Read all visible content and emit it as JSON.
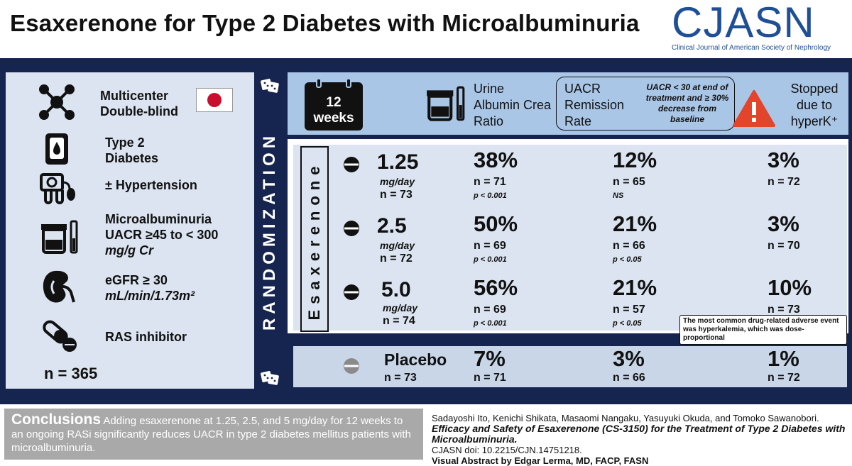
{
  "title": "Esaxerenone for Type 2 Diabetes with Microalbuminuria",
  "logo": {
    "name": "CJASN",
    "subtitle": "Clinical Journal of American Society of Nephrology"
  },
  "criteria": [
    {
      "icon": "network-icon",
      "text": "Multicenter Double-blind"
    },
    {
      "icon": "glucometer-icon",
      "text": "Type 2 Diabetes"
    },
    {
      "icon": "blood-pressure-icon",
      "text": "± Hypertension"
    },
    {
      "icon": "urine-cup-icon",
      "text": "Microalbuminuria",
      "line2": "UACR ≥45 to < 300",
      "line3": "mg/g Cr"
    },
    {
      "icon": "kidney-icon",
      "text": "eGFR ≥ 30",
      "line2": "mL/min/1.73m²"
    },
    {
      "icon": "pills-icon",
      "text": "RAS inhibitor"
    }
  ],
  "total_n": "n = 365",
  "randomization_label": "RANDOMIZATION",
  "drug_label": "Esaxerenone",
  "header": {
    "duration_num": "12",
    "duration_unit": "weeks",
    "uacr_label": "Urine Albumin Crea Ratio",
    "remission_label": "UACR Remission Rate",
    "remission_def": "UACR < 30 at end of treatment and ≥ 30% decrease from baseline",
    "stopped_label": "Stopped due to hyperK⁺"
  },
  "arms": [
    {
      "dose": "1.25",
      "unit": "mg/day",
      "n": "n = 73",
      "uacr_pct": "38%",
      "uacr_n": "n = 71",
      "uacr_p": "p < 0.001",
      "rem_pct": "12%",
      "rem_n": "n = 65",
      "rem_p": "NS",
      "stop_pct": "3%",
      "stop_n": "n = 72"
    },
    {
      "dose": "2.5",
      "unit": "mg/day",
      "n": "n = 72",
      "uacr_pct": "50%",
      "uacr_n": "n = 69",
      "uacr_p": "p < 0.001",
      "rem_pct": "21%",
      "rem_n": "n = 66",
      "rem_p": "p < 0.05",
      "stop_pct": "3%",
      "stop_n": "n = 70"
    },
    {
      "dose": "5.0",
      "unit": "mg/day",
      "n": "n = 74",
      "uacr_pct": "56%",
      "uacr_n": "n = 69",
      "uacr_p": "p < 0.001",
      "rem_pct": "21%",
      "rem_n": "n = 57",
      "rem_p": "p < 0.05",
      "stop_pct": "10%",
      "stop_n": "n = 73"
    }
  ],
  "adverse_note": "The most common drug-related adverse event was hyperkalemia, which was dose-proportional",
  "placebo": {
    "label": "Placebo",
    "n": "n = 73",
    "uacr_pct": "7%",
    "uacr_n": "n = 71",
    "rem_pct": "3%",
    "rem_n": "n = 66",
    "stop_pct": "1%",
    "stop_n": "n = 72"
  },
  "conclusions": {
    "heading": "Conclusions",
    "text": "Adding esaxerenone at 1.25, 2.5, and 5 mg/day for 12 weeks to an ongoing RASi significantly reduces UACR in type 2 diabetes mellitus patients with microalbuminuria."
  },
  "citation": {
    "authors": "Sadayoshi Ito, Kenichi Shikata, Masaomi Nangaku, Yasuyuki Okuda, and Tomoko Sawanobori.",
    "article": "Efficacy and Safety of Esaxerenone (CS-3150) for the Treatment of Type 2 Diabetes with Microalbuminuria.",
    "doi": "CJASN doi: 10.2215/CJN.14751218.",
    "credit": "Visual Abstract by Edgar Lerma, MD, FACP, FASN"
  },
  "colors": {
    "navy": "#16254f",
    "light_blue": "#aac6e6",
    "pale": "#dbe4f0",
    "gray": "#a9a9a9",
    "japan_red": "#c8102e",
    "warning_red": "#e2452b"
  }
}
